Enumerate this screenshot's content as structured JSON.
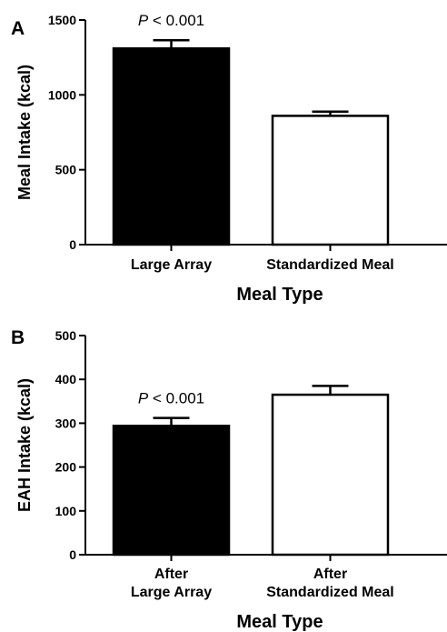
{
  "chart_data": [
    {
      "panel": "A",
      "type": "bar",
      "categories": [
        [
          "Large Array"
        ],
        [
          "Standardized Meal"
        ]
      ],
      "values": [
        1310,
        860
      ],
      "errors": [
        55,
        28
      ],
      "fills": [
        "#000000",
        "#ffffff"
      ],
      "xlabel": "Meal Type",
      "ylabel": "Meal Intake (kcal)",
      "ylim": [
        0,
        1500
      ],
      "yticks": [
        0,
        500,
        1000,
        1500
      ],
      "annotation": {
        "italic": "P",
        "text": " < 0.001",
        "bar_index": 0
      },
      "grid": false
    },
    {
      "panel": "B",
      "type": "bar",
      "categories": [
        [
          "After",
          "Large Array"
        ],
        [
          "After",
          "Standardized Meal"
        ]
      ],
      "values": [
        294,
        365
      ],
      "errors": [
        18,
        20
      ],
      "fills": [
        "#000000",
        "#ffffff"
      ],
      "xlabel": "Meal Type",
      "ylabel": "EAH Intake (kcal)",
      "ylim": [
        0,
        500
      ],
      "yticks": [
        0,
        100,
        200,
        300,
        400,
        500
      ],
      "annotation": {
        "italic": "P",
        "text": " < 0.001",
        "bar_index": 0
      },
      "grid": false
    }
  ]
}
